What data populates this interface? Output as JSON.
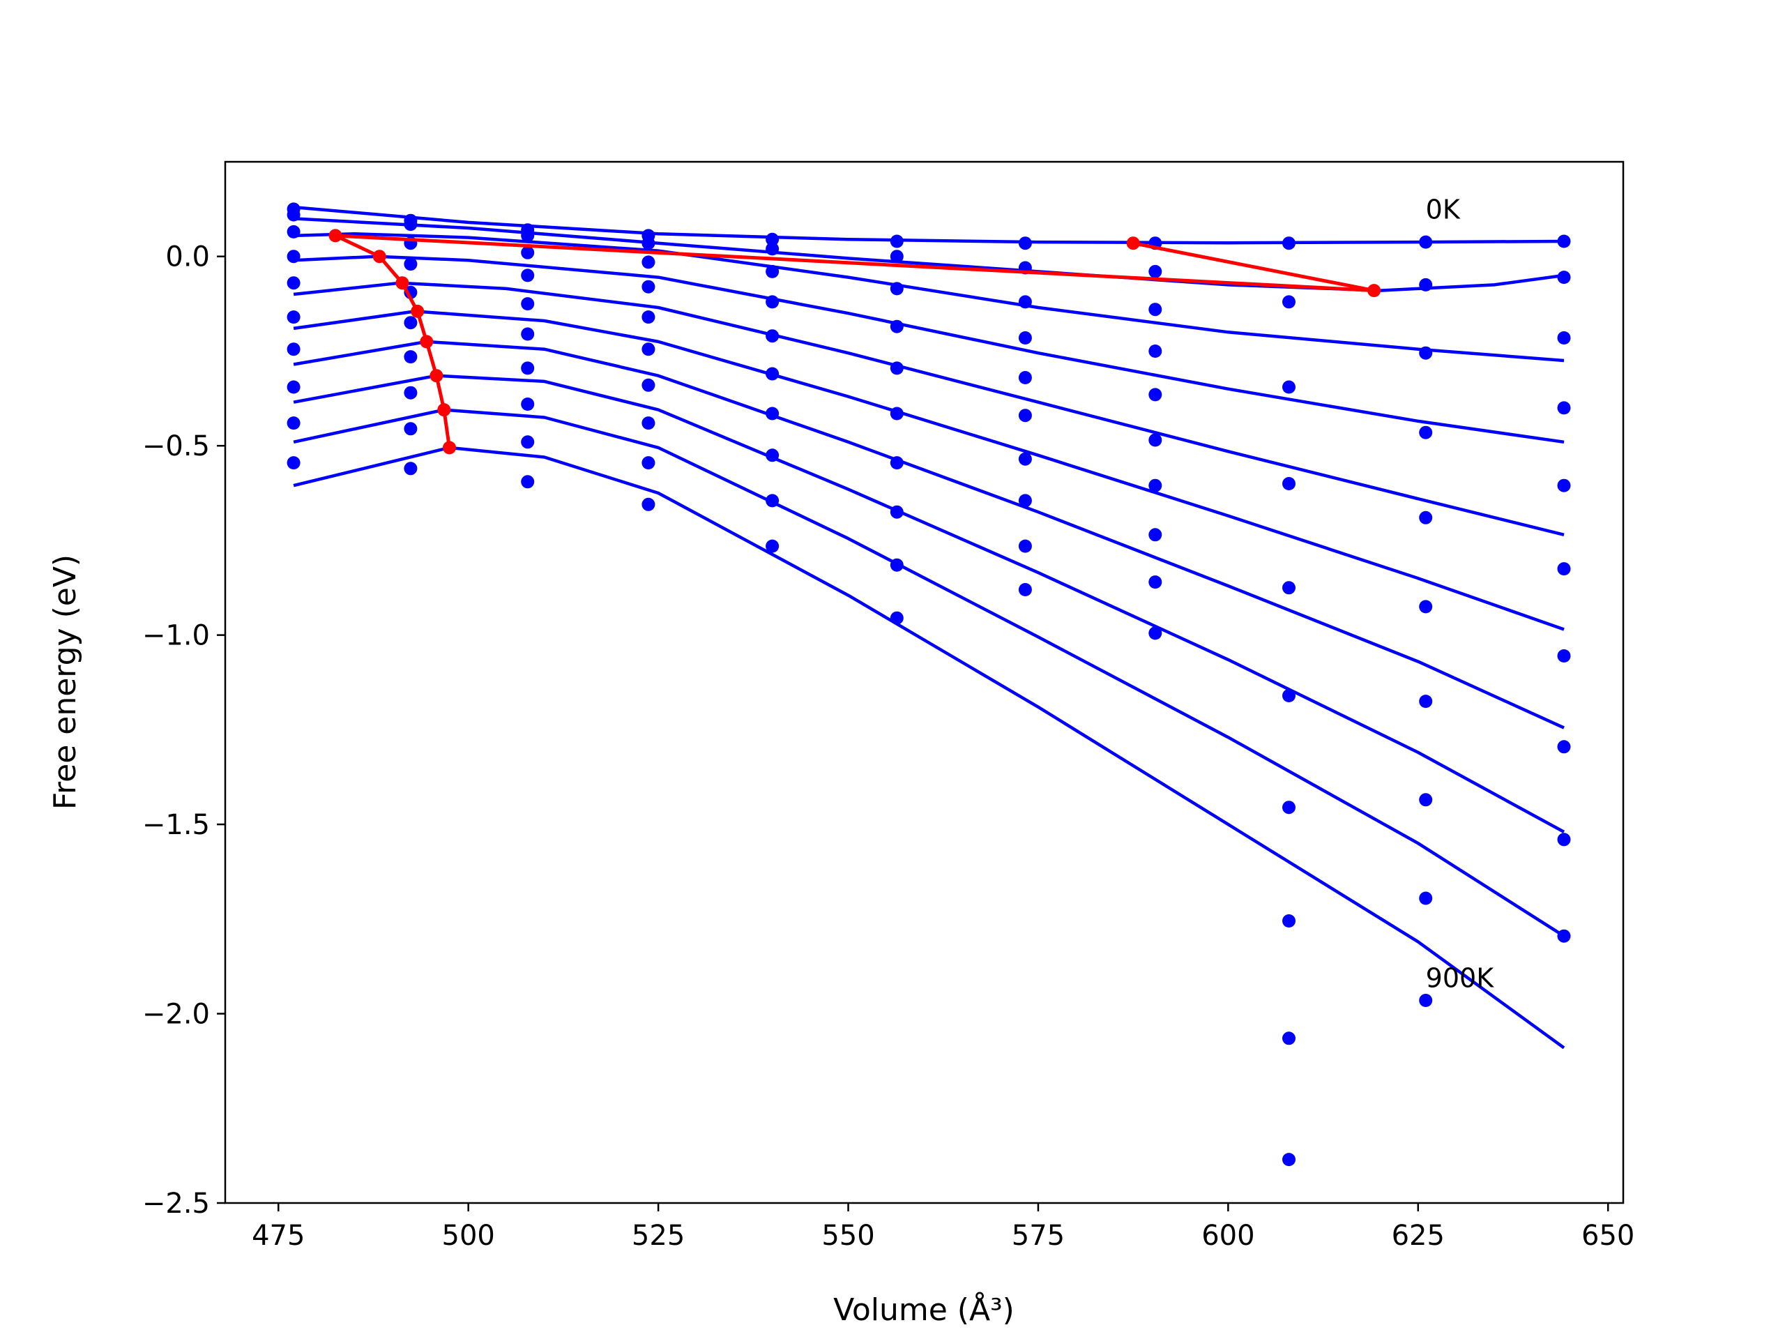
{
  "chart_data": {
    "type": "line",
    "title": "",
    "xlabel": "Volume (Å³)",
    "ylabel": "Free energy (eV)",
    "xlim": [
      468,
      652
    ],
    "ylim": [
      -2.5,
      0.25
    ],
    "x_ticks": [
      475,
      500,
      525,
      550,
      575,
      600,
      625,
      650
    ],
    "y_ticks": [
      -2.5,
      -2.0,
      -1.5,
      -1.0,
      -0.5,
      0.0
    ],
    "x_tick_labels": [
      "475",
      "500",
      "525",
      "550",
      "575",
      "600",
      "625",
      "650"
    ],
    "y_tick_labels": [
      "−2.5",
      "−2.0",
      "−1.5",
      "−1.0",
      "−0.5",
      "0.0"
    ],
    "grid": false,
    "legend": "none",
    "annotations": [
      {
        "text": "0K",
        "x": 626,
        "y": 0.1
      },
      {
        "text": "900K",
        "x": 626,
        "y": -1.93
      }
    ],
    "colors": {
      "points": "#0000ff",
      "fits": "#0000ff",
      "minimum_path": "#ff0000"
    },
    "x_volumes": [
      477,
      492.4,
      507.8,
      523.7,
      540,
      556.4,
      573.3,
      590.4,
      608,
      626,
      644.2
    ],
    "series": [
      {
        "values": [
          0.125,
          0.095,
          0.07,
          0.055,
          0.045,
          0.04,
          0.035,
          0.035,
          0.035,
          0.038,
          0.04
        ]
      },
      {
        "values": [
          0.11,
          0.085,
          0.055,
          0.035,
          0.02,
          0.0,
          -0.03,
          -0.04,
          -0.12,
          -0.075,
          -0.055
        ]
      },
      {
        "values": [
          0.065,
          0.035,
          0.01,
          -0.015,
          -0.04,
          -0.085,
          -0.12,
          -0.14,
          -0.345,
          -0.255,
          -0.215
        ]
      },
      {
        "values": [
          0.0,
          -0.02,
          -0.05,
          -0.08,
          -0.12,
          -0.185,
          -0.215,
          -0.25,
          -0.6,
          -0.465,
          -0.4
        ]
      },
      {
        "values": [
          -0.07,
          -0.095,
          -0.125,
          -0.16,
          -0.21,
          -0.295,
          -0.32,
          -0.365,
          -0.875,
          -0.69,
          -0.605
        ]
      },
      {
        "values": [
          -0.16,
          -0.175,
          -0.205,
          -0.245,
          -0.31,
          -0.415,
          -0.42,
          -0.485,
          -1.16,
          -0.925,
          -0.825
        ]
      },
      {
        "values": [
          -0.245,
          -0.265,
          -0.295,
          -0.34,
          -0.415,
          -0.545,
          -0.535,
          -0.605,
          -1.455,
          -1.175,
          -1.055
        ]
      },
      {
        "values": [
          -0.345,
          -0.36,
          -0.39,
          -0.44,
          -0.525,
          -0.675,
          -0.645,
          -0.735,
          -1.755,
          -1.435,
          -1.295
        ]
      },
      {
        "values": [
          -0.44,
          -0.455,
          -0.49,
          -0.545,
          -0.645,
          -0.815,
          -0.765,
          -0.86,
          -2.065,
          -1.695,
          -1.54
        ]
      },
      {
        "values": [
          -0.545,
          -0.56,
          -0.595,
          -0.655,
          -0.765,
          -0.955,
          -0.88,
          -0.995,
          -2.385,
          -1.965,
          -1.795
        ]
      }
    ],
    "fit_curves": [
      {
        "x": [
          477,
          500,
          525,
          550,
          575,
          600,
          625,
          644.2
        ],
        "y": [
          0.13,
          0.09,
          0.06,
          0.045,
          0.038,
          0.036,
          0.038,
          0.04
        ]
      },
      {
        "x": [
          477,
          500,
          525,
          550,
          575,
          600,
          620,
          635,
          644.2
        ],
        "y": [
          0.1,
          0.075,
          0.035,
          -0.005,
          -0.04,
          -0.075,
          -0.09,
          -0.075,
          -0.05
        ]
      },
      {
        "x": [
          477,
          485,
          500,
          525,
          550,
          575,
          600,
          625,
          644.2
        ],
        "y": [
          0.055,
          0.06,
          0.05,
          0.015,
          -0.055,
          -0.135,
          -0.2,
          -0.245,
          -0.275
        ]
      },
      {
        "x": [
          477,
          488,
          500,
          525,
          550,
          575,
          600,
          625,
          644.2
        ],
        "y": [
          -0.01,
          0.0,
          -0.01,
          -0.055,
          -0.15,
          -0.255,
          -0.35,
          -0.435,
          -0.49
        ]
      },
      {
        "x": [
          477,
          491,
          505,
          525,
          550,
          575,
          600,
          625,
          644.2
        ],
        "y": [
          -0.1,
          -0.07,
          -0.085,
          -0.135,
          -0.255,
          -0.385,
          -0.515,
          -0.64,
          -0.735
        ]
      },
      {
        "x": [
          477,
          493,
          510,
          525,
          550,
          575,
          600,
          625,
          644.2
        ],
        "y": [
          -0.19,
          -0.145,
          -0.17,
          -0.225,
          -0.37,
          -0.525,
          -0.685,
          -0.85,
          -0.985
        ]
      },
      {
        "x": [
          477,
          494.5,
          510,
          525,
          550,
          575,
          600,
          625,
          644.2
        ],
        "y": [
          -0.285,
          -0.225,
          -0.245,
          -0.315,
          -0.49,
          -0.675,
          -0.87,
          -1.07,
          -1.245
        ]
      },
      {
        "x": [
          477,
          495.8,
          510,
          525,
          550,
          575,
          600,
          625,
          644.2
        ],
        "y": [
          -0.385,
          -0.315,
          -0.33,
          -0.405,
          -0.615,
          -0.835,
          -1.065,
          -1.31,
          -1.52
        ]
      },
      {
        "x": [
          477,
          496.8,
          510,
          525,
          550,
          575,
          600,
          625,
          644.2
        ],
        "y": [
          -0.49,
          -0.405,
          -0.425,
          -0.505,
          -0.745,
          -1.005,
          -1.27,
          -1.55,
          -1.795
        ]
      },
      {
        "x": [
          477,
          497.5,
          510,
          525,
          550,
          575,
          600,
          625,
          644.2
        ],
        "y": [
          -0.605,
          -0.505,
          -0.53,
          -0.625,
          -0.895,
          -1.19,
          -1.5,
          -1.81,
          -2.09
        ]
      }
    ],
    "minimum_path": {
      "x": [
        587.5,
        619.2,
        482.5,
        488.3,
        491.3,
        493.3,
        494.5,
        495.8,
        496.8,
        497.5
      ],
      "y": [
        0.035,
        -0.09,
        0.055,
        0.0,
        -0.07,
        -0.145,
        -0.225,
        -0.315,
        -0.405,
        -0.505
      ]
    }
  }
}
